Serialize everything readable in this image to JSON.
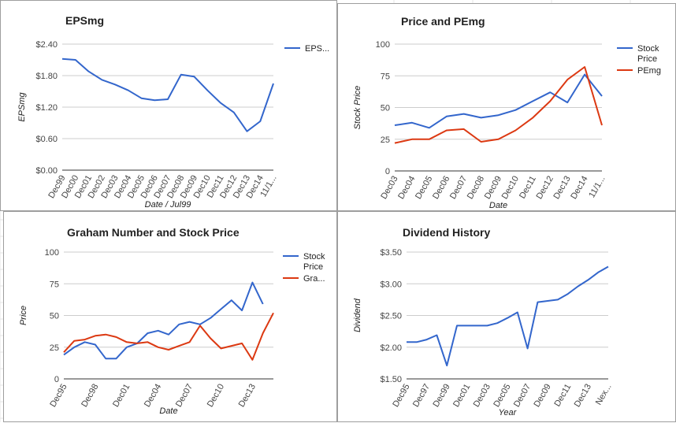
{
  "colors": {
    "blue": "#3366cc",
    "red": "#dc3912",
    "grid": "#cccccc",
    "axis": "#333333",
    "text": "#222222",
    "muted": "#444444"
  },
  "chart_data": [
    {
      "type": "line",
      "title": "EPSmg",
      "xlabel": "Date / Jul99",
      "ylabel": "EPSmg",
      "categories": [
        "Dec99",
        "Dec00",
        "Dec01",
        "Dec02",
        "Dec03",
        "Dec04",
        "Dec05",
        "Dec06",
        "Dec07",
        "Dec08",
        "Dec09",
        "Dec10",
        "Dec11",
        "Dec12",
        "Dec13",
        "Dec14",
        "11/1..."
      ],
      "yticks": [
        "$0.00",
        "$0.60",
        "$1.20",
        "$1.80",
        "$2.40"
      ],
      "ylim": [
        0,
        2.4
      ],
      "x": [
        0,
        1,
        2,
        3,
        4,
        5,
        6,
        7,
        8,
        9,
        10,
        11,
        12,
        13,
        14,
        15,
        16
      ],
      "series": [
        {
          "name": "EPS...",
          "color": "#3366cc",
          "values": [
            2.12,
            2.1,
            1.88,
            1.72,
            1.63,
            1.52,
            1.37,
            1.33,
            1.35,
            1.82,
            1.78,
            1.52,
            1.28,
            1.1,
            0.74,
            0.93,
            1.65
          ]
        }
      ],
      "legend": "right",
      "grid": true
    },
    {
      "type": "line",
      "title": "Price and PEmg",
      "xlabel": "Date",
      "ylabel": "Stock Price",
      "categories": [
        "Dec03",
        "Dec04",
        "Dec05",
        "Dec06",
        "Dec07",
        "Dec08",
        "Dec09",
        "Dec10",
        "Dec11",
        "Dec12",
        "Dec13",
        "Dec14",
        "11/1..."
      ],
      "yticks": [
        "0",
        "25",
        "50",
        "75",
        "100"
      ],
      "ylim": [
        0,
        100
      ],
      "x": [
        0,
        1,
        2,
        3,
        4,
        5,
        6,
        7,
        8,
        9,
        10,
        11,
        12
      ],
      "series": [
        {
          "name": "Stock Price",
          "color": "#3366cc",
          "values": [
            36,
            38,
            34,
            43,
            45,
            42,
            44,
            48,
            55,
            62,
            54,
            76,
            59
          ]
        },
        {
          "name": "PEmg",
          "color": "#dc3912",
          "values": [
            22,
            25,
            25,
            32,
            33,
            23,
            25,
            32,
            42,
            55,
            72,
            82,
            36
          ]
        }
      ],
      "legend": "right",
      "grid": true
    },
    {
      "type": "line",
      "title": "Graham Number and Stock Price",
      "xlabel": "Date",
      "ylabel": "Price",
      "categories": [
        "Dec95",
        "Dec98",
        "Dec01",
        "Dec04",
        "Dec07",
        "Dec10",
        "Dec13"
      ],
      "category_x": [
        0,
        3,
        6,
        9,
        12,
        15,
        18
      ],
      "yticks": [
        "0",
        "25",
        "50",
        "75",
        "100"
      ],
      "ylim": [
        0,
        100
      ],
      "x": [
        0,
        1,
        2,
        3,
        4,
        5,
        6,
        7,
        8,
        9,
        10,
        11,
        12,
        13,
        14,
        15,
        16,
        17,
        18,
        19,
        20
      ],
      "series": [
        {
          "name": "Stock Price",
          "color": "#3366cc",
          "values": [
            19,
            25,
            29,
            27,
            16,
            16,
            25,
            28,
            36,
            38,
            35,
            43,
            45,
            43,
            48,
            55,
            62,
            54,
            76,
            59,
            null
          ]
        },
        {
          "name": "Gra...",
          "color": "#dc3912",
          "values": [
            21,
            30,
            31,
            34,
            35,
            33,
            29,
            28,
            29,
            25,
            23,
            26,
            29,
            42,
            32,
            24,
            26,
            28,
            15,
            36,
            52
          ]
        }
      ],
      "legend": "right",
      "grid": true
    },
    {
      "type": "line",
      "title": "Dividend History",
      "xlabel": "Year",
      "ylabel": "Dividend",
      "categories": [
        "Dec95",
        "Dec97",
        "Dec99",
        "Dec01",
        "Dec03",
        "Dec05",
        "Dec07",
        "Dec09",
        "Dec11",
        "Dec13",
        "Nex..."
      ],
      "category_x": [
        0,
        2,
        4,
        6,
        8,
        10,
        12,
        14,
        16,
        18,
        20
      ],
      "yticks": [
        "$1.50",
        "$2.00",
        "$2.50",
        "$3.00",
        "$3.50"
      ],
      "ylim": [
        1.5,
        3.5
      ],
      "x": [
        0,
        1,
        2,
        3,
        4,
        5,
        6,
        7,
        8,
        9,
        10,
        11,
        12,
        13,
        14,
        15,
        16,
        17,
        18,
        19,
        20
      ],
      "series": [
        {
          "name": "Dividend",
          "color": "#3366cc",
          "values": [
            2.08,
            2.08,
            2.12,
            2.19,
            1.71,
            2.34,
            2.34,
            2.34,
            2.34,
            2.38,
            2.46,
            2.55,
            1.98,
            2.71,
            2.73,
            2.75,
            2.84,
            2.96,
            3.06,
            3.18,
            3.27
          ]
        }
      ],
      "legend": "none",
      "grid": true
    }
  ]
}
